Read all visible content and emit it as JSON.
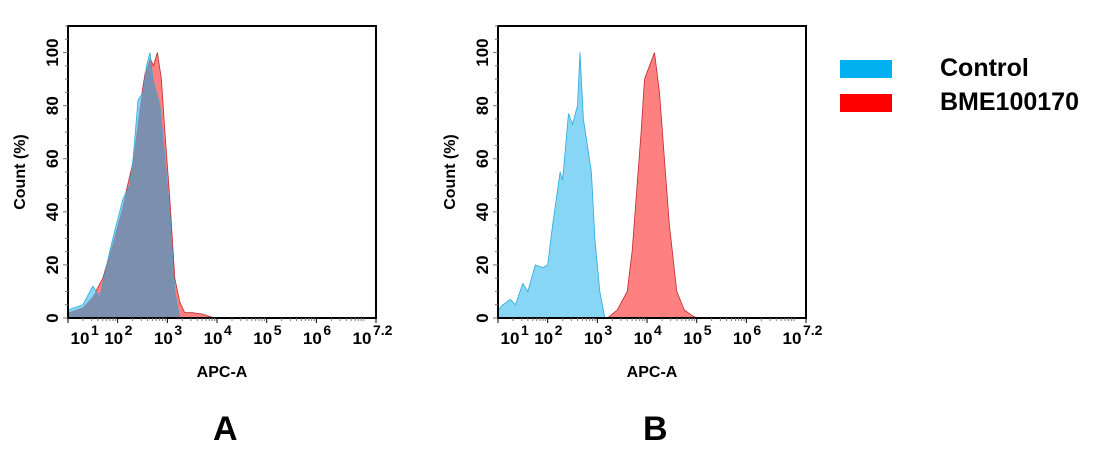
{
  "legend": [
    {
      "label": "Control",
      "color": "#00b0f0"
    },
    {
      "label": "BME100170",
      "color": "#ff0000"
    }
  ],
  "chart_data": [
    {
      "type": "area",
      "panel_label": "A",
      "xlabel": "APC-A",
      "ylabel": "Count  (%)",
      "x_scale": "log10",
      "xlim": [
        10,
        15848932
      ],
      "x_ticks": [
        "10",
        "1",
        "10",
        "2",
        "10",
        "3",
        "10",
        "4",
        "10",
        "5",
        "10",
        "6",
        "10",
        "7.2"
      ],
      "x_tick_values_log10": [
        1,
        2,
        3,
        4,
        5,
        6,
        7.2
      ],
      "ylim": [
        0,
        110
      ],
      "y_ticks": [
        "0",
        "20",
        "40",
        "60",
        "80",
        "100"
      ],
      "series": [
        {
          "name": "Control",
          "fill": "#87d6f5",
          "stroke": "#29a9dc",
          "log10_x": [
            1.0,
            1.3,
            1.5,
            1.64,
            1.84,
            1.97,
            2.11,
            2.24,
            2.31,
            2.41,
            2.51,
            2.58,
            2.65,
            2.71,
            2.78,
            2.85,
            2.95,
            3.05,
            3.15,
            3.25
          ],
          "y": [
            3,
            5,
            12,
            8,
            25,
            35,
            45,
            50,
            60,
            82,
            85,
            95,
            100,
            90,
            85,
            80,
            60,
            40,
            10,
            0
          ]
        },
        {
          "name": "BME100170",
          "fill": "#ff8080",
          "stroke": "#c0282d",
          "log10_x": [
            1.0,
            1.3,
            1.5,
            1.7,
            1.9,
            2.1,
            2.3,
            2.45,
            2.55,
            2.65,
            2.72,
            2.8,
            2.88,
            2.95,
            3.05,
            3.15,
            3.25,
            3.35,
            3.5,
            3.7,
            3.95
          ],
          "y": [
            2,
            4,
            8,
            15,
            28,
            42,
            58,
            80,
            92,
            98,
            95,
            100,
            90,
            70,
            45,
            15,
            6,
            2,
            2,
            1.5,
            0
          ]
        }
      ]
    },
    {
      "type": "area",
      "panel_label": "B",
      "xlabel": "APC-A",
      "ylabel": "Count  (%)",
      "x_scale": "log10",
      "xlim": [
        10,
        15848932
      ],
      "x_ticks": [
        "10",
        "1",
        "10",
        "2",
        "10",
        "3",
        "10",
        "4",
        "10",
        "5",
        "10",
        "6",
        "10",
        "7.2"
      ],
      "x_tick_values_log10": [
        1,
        2,
        3,
        4,
        5,
        6,
        7.2
      ],
      "ylim": [
        0,
        110
      ],
      "y_ticks": [
        "0",
        "20",
        "40",
        "60",
        "80",
        "100"
      ],
      "series": [
        {
          "name": "Control",
          "fill": "#87d6f5",
          "stroke": "#29a9dc",
          "log10_x": [
            1.0,
            1.1,
            1.25,
            1.35,
            1.5,
            1.6,
            1.75,
            1.9,
            2.0,
            2.1,
            2.25,
            2.3,
            2.42,
            2.5,
            2.6,
            2.65,
            2.72,
            2.8,
            2.88,
            2.95,
            3.05,
            3.15
          ],
          "y": [
            3,
            5,
            7,
            5,
            13,
            10,
            20,
            19,
            20,
            35,
            55,
            52,
            77,
            73,
            80,
            100,
            75,
            65,
            55,
            30,
            10,
            0
          ]
        },
        {
          "name": "BME100170",
          "fill": "#ff8080",
          "stroke": "#c0282d",
          "log10_x": [
            3.2,
            3.4,
            3.6,
            3.7,
            3.8,
            3.88,
            3.95,
            4.05,
            4.15,
            4.25,
            4.35,
            4.45,
            4.6,
            4.75,
            4.9,
            5.0
          ],
          "y": [
            0,
            3,
            10,
            25,
            50,
            70,
            90,
            95,
            100,
            85,
            60,
            35,
            10,
            3,
            1,
            0
          ]
        }
      ]
    }
  ]
}
